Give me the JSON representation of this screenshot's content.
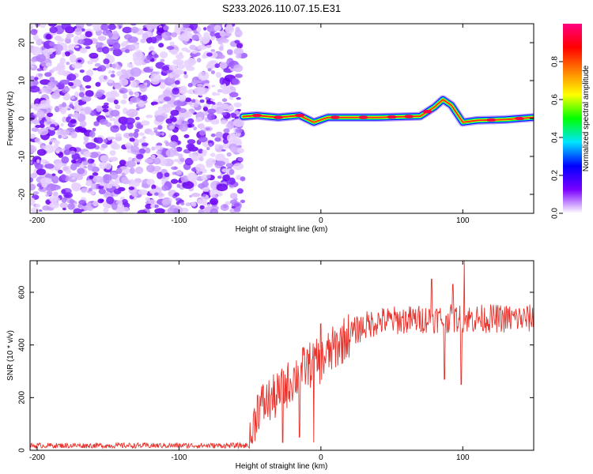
{
  "title": "S233.2026.110.07.15.E31",
  "chart_data": [
    {
      "id": "spectrogram",
      "type": "heatmap",
      "xlabel": "Height of straight line (km)",
      "ylabel": "Frequency (Hz)",
      "xlim": [
        -205,
        150
      ],
      "ylim": [
        -25,
        25
      ],
      "xticks": [
        -200,
        -100,
        0,
        100
      ],
      "yticks": [
        -20,
        -10,
        0,
        10,
        20
      ],
      "noise_region_x": [
        -205,
        -55
      ],
      "ridge": [
        {
          "x": -55,
          "f": 0.5
        },
        {
          "x": -45,
          "f": 0.8
        },
        {
          "x": -30,
          "f": 0.3
        },
        {
          "x": -15,
          "f": 0.8
        },
        {
          "x": -5,
          "f": -1.0
        },
        {
          "x": 5,
          "f": 0.3
        },
        {
          "x": 40,
          "f": 0.3
        },
        {
          "x": 70,
          "f": 0.6
        },
        {
          "x": 80,
          "f": 3.0
        },
        {
          "x": 86,
          "f": 5.0
        },
        {
          "x": 92,
          "f": 3.5
        },
        {
          "x": 100,
          "f": -1.0
        },
        {
          "x": 110,
          "f": -0.5
        },
        {
          "x": 130,
          "f": -0.3
        },
        {
          "x": 150,
          "f": 0.3
        }
      ],
      "colorbar": {
        "label": "Normalized spectral amplitude",
        "range": [
          0,
          1
        ],
        "ticks": [
          "0.0",
          "0.2",
          "0.4",
          "0.6",
          "0.8"
        ],
        "tick_values": [
          0,
          0.2,
          0.4,
          0.6,
          0.8
        ],
        "colors": [
          "#ffffff",
          "#7a00ff",
          "#0000ff",
          "#00e5ff",
          "#00ff00",
          "#ffff00",
          "#ff8000",
          "#ff0000",
          "#ff0080"
        ]
      }
    },
    {
      "id": "snr",
      "type": "line",
      "xlabel": "Height of straight line (km)",
      "ylabel": "SNR (10 * v/v)",
      "xlim": [
        -205,
        150
      ],
      "ylim": [
        0,
        720
      ],
      "xticks": [
        -200,
        -100,
        0,
        100
      ],
      "yticks": [
        0,
        200,
        400,
        600
      ],
      "line_color": "#e8322b",
      "profile": [
        {
          "x": -205,
          "y": 18
        },
        {
          "x": -50,
          "y": 18
        },
        {
          "x": -45,
          "y": 160
        },
        {
          "x": -30,
          "y": 210
        },
        {
          "x": -20,
          "y": 270
        },
        {
          "x": -10,
          "y": 320
        },
        {
          "x": 0,
          "y": 340
        },
        {
          "x": 10,
          "y": 390
        },
        {
          "x": 20,
          "y": 440
        },
        {
          "x": 30,
          "y": 470
        },
        {
          "x": 40,
          "y": 490
        },
        {
          "x": 60,
          "y": 495
        },
        {
          "x": 80,
          "y": 500
        },
        {
          "x": 100,
          "y": 500
        },
        {
          "x": 150,
          "y": 500
        }
      ],
      "dips": [
        {
          "x": -27,
          "y": 30
        },
        {
          "x": -15,
          "y": 50
        },
        {
          "x": -5,
          "y": 30
        },
        {
          "x": 87,
          "y": 270
        },
        {
          "x": 99,
          "y": 250
        }
      ],
      "spikes": [
        {
          "x": 0,
          "y": 480
        },
        {
          "x": 78,
          "y": 650
        },
        {
          "x": 93,
          "y": 630
        },
        {
          "x": 101,
          "y": 720
        }
      ]
    }
  ]
}
